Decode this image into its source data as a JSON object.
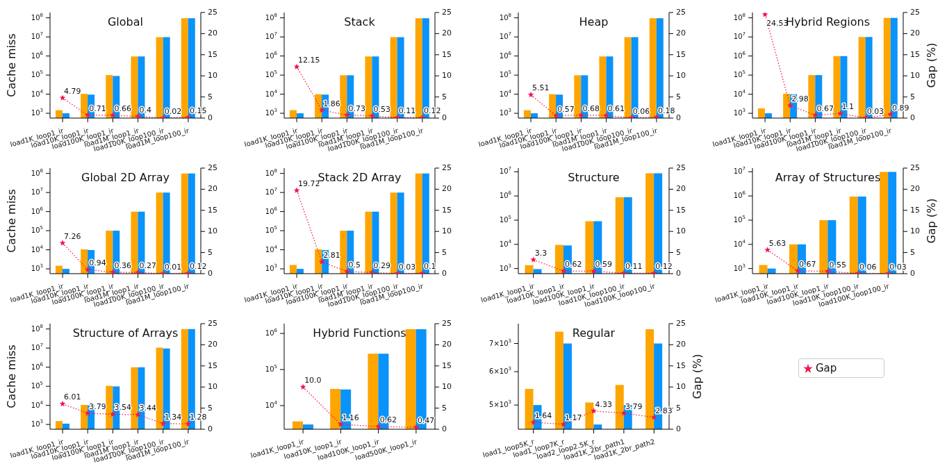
{
  "chart_data": [
    {
      "type": "bar",
      "title": "Global",
      "ylabel": "Cache miss",
      "log": true,
      "marker": "star",
      "line_style": "dotted",
      "categories": [
        "load1K_loop1_ir",
        "load10K_loop1_ir",
        "load100K_loop1_ir",
        "load1M_loop1_ir",
        "load100K_loop100_ir",
        "load1M_loop100_ir"
      ],
      "ylim": [
        560,
        190000000
      ],
      "yticks": [
        {
          "value": 1000,
          "label": "10$^{3}$"
        },
        {
          "value": 10000,
          "label": "10$^{4}$"
        },
        {
          "value": 100000,
          "label": "10$^{5}$"
        },
        {
          "value": 1000000,
          "label": "10$^{6}$"
        },
        {
          "value": 10000000,
          "label": "10$^{7}$"
        },
        {
          "value": 100000000,
          "label": "10$^{8}$"
        }
      ],
      "y2lim": [
        0,
        25
      ],
      "y2ticks": [
        0,
        5,
        10,
        15,
        20,
        25
      ],
      "series": [
        {
          "color": "#ffa500",
          "values": [
            1450,
            10400,
            100000,
            950000,
            9800000,
            95000000
          ]
        },
        {
          "color": "#0a93fa",
          "values": [
            1000,
            9500,
            90000,
            950000,
            9800000,
            95000000
          ]
        },
        {
          "type": "line",
          "axis": "y2",
          "color": "#f0184e",
          "values": [
            4.79,
            0.71,
            0.66,
            0.4,
            0.02,
            0.15
          ],
          "value_labels": [
            "4.79",
            "0.71",
            "0.66",
            "0.4",
            "0.02",
            "0.15"
          ]
        }
      ]
    },
    {
      "type": "bar",
      "title": "Stack",
      "log": true,
      "marker": "star",
      "line_style": "dotted",
      "categories": [
        "load1K_loop1_ir",
        "load10K_loop1_ir",
        "load100K_loop1_ir",
        "load1M_loop1_ir",
        "load100K_loop100_ir",
        "load1M_loop100_ir"
      ],
      "ylim": [
        560,
        190000000
      ],
      "yticks": [
        {
          "value": 1000,
          "label": "10$^{3}$"
        },
        {
          "value": 10000,
          "label": "10$^{4}$"
        },
        {
          "value": 100000,
          "label": "10$^{5}$"
        },
        {
          "value": 1000000,
          "label": "10$^{6}$"
        },
        {
          "value": 10000000,
          "label": "10$^{7}$"
        },
        {
          "value": 100000000,
          "label": "10$^{8}$"
        }
      ],
      "y2lim": [
        0,
        25
      ],
      "y2ticks": [
        0,
        5,
        10,
        15,
        20,
        25
      ],
      "series": [
        {
          "color": "#ffa500",
          "values": [
            1450,
            10000,
            98000,
            950000,
            9800000,
            95000000
          ]
        },
        {
          "color": "#0a93fa",
          "values": [
            1000,
            9500,
            98000,
            950000,
            9800000,
            95000000
          ]
        },
        {
          "type": "line",
          "axis": "y2",
          "color": "#f0184e",
          "values": [
            12.15,
            1.86,
            0.73,
            0.53,
            0.11,
            0.12
          ],
          "value_labels": [
            "12.15",
            "1.86",
            "0.73",
            "0.53",
            "0.11",
            "0.12"
          ]
        }
      ]
    },
    {
      "type": "bar",
      "title": "Heap",
      "log": true,
      "marker": "star",
      "line_style": "dotted",
      "categories": [
        "load1K_loop1_ir",
        "load10K_loop1_ir",
        "load100K_loop1_ir",
        "load1M_loop1_ir",
        "load100K_loop100_ir",
        "load1M_loop100_ir"
      ],
      "ylim": [
        560,
        190000000
      ],
      "yticks": [
        {
          "value": 1000,
          "label": "10$^{3}$"
        },
        {
          "value": 10000,
          "label": "10$^{4}$"
        },
        {
          "value": 100000,
          "label": "10$^{5}$"
        },
        {
          "value": 1000000,
          "label": "10$^{6}$"
        },
        {
          "value": 10000000,
          "label": "10$^{7}$"
        },
        {
          "value": 100000000,
          "label": "10$^{8}$"
        }
      ],
      "y2lim": [
        0,
        25
      ],
      "y2ticks": [
        0,
        5,
        10,
        15,
        20,
        25
      ],
      "series": [
        {
          "color": "#ffa500",
          "values": [
            1450,
            10000,
            98000,
            950000,
            9800000,
            95000000
          ]
        },
        {
          "color": "#0a93fa",
          "values": [
            1000,
            9500,
            98000,
            950000,
            9800000,
            95000000
          ]
        },
        {
          "type": "line",
          "axis": "y2",
          "color": "#f0184e",
          "values": [
            5.51,
            0.57,
            0.68,
            0.61,
            0.06,
            0.18
          ],
          "value_labels": [
            "5.51",
            "0.57",
            "0.68",
            "0.61",
            "0.06",
            "0.18"
          ]
        }
      ]
    },
    {
      "type": "bar",
      "title": "Hybrid Regions",
      "y2label": "Gap (%)",
      "log": true,
      "marker": "star",
      "line_style": "dotted",
      "categories": [
        "load1K_loop1_ir",
        "load10K_loop1_ir",
        "load100K_loop1_ir",
        "load1M_loop1_ir",
        "load100K_loop100_ir",
        "load1M_loop100_ir"
      ],
      "ylim": [
        560,
        190000000
      ],
      "yticks": [
        {
          "value": 1000,
          "label": "10$^{3}$"
        },
        {
          "value": 10000,
          "label": "10$^{4}$"
        },
        {
          "value": 100000,
          "label": "10$^{5}$"
        },
        {
          "value": 1000000,
          "label": "10$^{6}$"
        },
        {
          "value": 10000000,
          "label": "10$^{7}$"
        },
        {
          "value": 100000000,
          "label": "10$^{8}$"
        }
      ],
      "y2lim": [
        0,
        25
      ],
      "y2ticks": [
        0,
        5,
        10,
        15,
        20,
        25
      ],
      "series": [
        {
          "color": "#ffa500",
          "values": [
            1800,
            10500,
            100000,
            1000000,
            10000000,
            100000000
          ]
        },
        {
          "color": "#0a93fa",
          "values": [
            1000,
            9800,
            100000,
            1000000,
            10000000,
            100000000
          ]
        },
        {
          "type": "line",
          "axis": "y2",
          "color": "#f0184e",
          "values": [
            24.53,
            2.98,
            0.67,
            1.1,
            0.03,
            0.89
          ],
          "value_labels": [
            "24.53",
            "2.98",
            "0.67",
            "1.1",
            "0.03",
            "0.89"
          ]
        }
      ]
    },
    {
      "type": "bar",
      "title": "Global 2D Array",
      "ylabel": "Cache miss",
      "log": true,
      "marker": "star",
      "line_style": "dotted",
      "categories": [
        "load1K_loop1_ir",
        "load10K_loop1_ir",
        "load100K_loop1_ir",
        "load1M_loop1_ir",
        "load100K_loop100_ir",
        "load1M_loop100_ir"
      ],
      "ylim": [
        560,
        190000000
      ],
      "yticks": [
        {
          "value": 1000,
          "label": "10$^{3}$"
        },
        {
          "value": 10000,
          "label": "10$^{4}$"
        },
        {
          "value": 100000,
          "label": "10$^{5}$"
        },
        {
          "value": 1000000,
          "label": "10$^{6}$"
        },
        {
          "value": 10000000,
          "label": "10$^{7}$"
        },
        {
          "value": 100000000,
          "label": "10$^{8}$"
        }
      ],
      "y2lim": [
        0,
        25
      ],
      "y2ticks": [
        0,
        5,
        10,
        15,
        20,
        25
      ],
      "series": [
        {
          "color": "#ffa500",
          "values": [
            1450,
            10500,
            100000,
            1000000,
            10000000,
            100000000
          ]
        },
        {
          "color": "#0a93fa",
          "values": [
            1000,
            9600,
            100000,
            1000000,
            10000000,
            100000000
          ]
        },
        {
          "type": "line",
          "axis": "y2",
          "color": "#f0184e",
          "values": [
            7.26,
            0.94,
            0.36,
            0.27,
            0.01,
            0.12
          ],
          "value_labels": [
            "7.26",
            "0.94",
            "0.36",
            "0.27",
            "0.01",
            "0.12"
          ]
        }
      ]
    },
    {
      "type": "bar",
      "title": "Stack 2D Array",
      "log": true,
      "marker": "star",
      "line_style": "dotted",
      "categories": [
        "load1K_loop1_ir",
        "load10K_loop1_ir",
        "load100K_loop1_ir",
        "load1M_loop1_ir",
        "load100K_loop100_ir",
        "load1M_loop100_ir"
      ],
      "ylim": [
        560,
        190000000
      ],
      "yticks": [
        {
          "value": 1000,
          "label": "10$^{3}$"
        },
        {
          "value": 10000,
          "label": "10$^{4}$"
        },
        {
          "value": 100000,
          "label": "10$^{5}$"
        },
        {
          "value": 1000000,
          "label": "10$^{6}$"
        },
        {
          "value": 10000000,
          "label": "10$^{7}$"
        },
        {
          "value": 100000000,
          "label": "10$^{8}$"
        }
      ],
      "y2lim": [
        0,
        25
      ],
      "y2ticks": [
        0,
        5,
        10,
        15,
        20,
        25
      ],
      "series": [
        {
          "color": "#ffa500",
          "values": [
            1600,
            10500,
            100000,
            1000000,
            10000000,
            100000000
          ]
        },
        {
          "color": "#0a93fa",
          "values": [
            1000,
            9600,
            100000,
            1000000,
            10000000,
            100000000
          ]
        },
        {
          "type": "line",
          "axis": "y2",
          "color": "#f0184e",
          "values": [
            19.72,
            2.81,
            0.5,
            0.29,
            0.03,
            0.1
          ],
          "value_labels": [
            "19.72",
            "2.81",
            "0.5",
            "0.29",
            "0.03",
            "0.1"
          ]
        }
      ]
    },
    {
      "type": "bar",
      "title": "Structure",
      "log": true,
      "marker": "star",
      "line_style": "dotted",
      "categories": [
        "load1K_loop1_ir",
        "load10K_loop1_ir",
        "load100K_loop1_ir",
        "load10K_loop100_ir",
        "load100K_loop100_ir"
      ],
      "ylim": [
        615,
        14200000
      ],
      "yticks": [
        {
          "value": 1000,
          "label": "10$^{3}$"
        },
        {
          "value": 10000,
          "label": "10$^{4}$"
        },
        {
          "value": 100000,
          "label": "10$^{5}$"
        },
        {
          "value": 1000000,
          "label": "10$^{6}$"
        },
        {
          "value": 10000000,
          "label": "10$^{7}$"
        }
      ],
      "y2lim": [
        0,
        25
      ],
      "y2ticks": [
        0,
        5,
        10,
        15,
        20,
        25
      ],
      "series": [
        {
          "color": "#ffa500",
          "values": [
            1380,
            9500,
            90000,
            880000,
            8700000
          ]
        },
        {
          "color": "#0a93fa",
          "values": [
            950,
            9000,
            90000,
            880000,
            8700000
          ]
        },
        {
          "type": "line",
          "axis": "y2",
          "color": "#f0184e",
          "values": [
            3.3,
            0.62,
            0.59,
            0.11,
            0.12
          ],
          "value_labels": [
            "3.3",
            "0.62",
            "0.59",
            "0.11",
            "0.12"
          ]
        }
      ]
    },
    {
      "type": "bar",
      "title": "Array of Structures",
      "y2label": "Gap (%)",
      "log": true,
      "marker": "star",
      "line_style": "dotted",
      "categories": [
        "load1K_loop1_ir",
        "load10K_loop1_ir",
        "load100K_loop1_ir",
        "load10K_loop100_ir",
        "load100K_loop100_ir"
      ],
      "ylim": [
        615,
        14200000
      ],
      "yticks": [
        {
          "value": 1000,
          "label": "10$^{3}$"
        },
        {
          "value": 10000,
          "label": "10$^{4}$"
        },
        {
          "value": 100000,
          "label": "10$^{5}$"
        },
        {
          "value": 1000000,
          "label": "10$^{6}$"
        },
        {
          "value": 10000000,
          "label": "10$^{7}$"
        }
      ],
      "y2lim": [
        0,
        25
      ],
      "y2ticks": [
        0,
        5,
        10,
        15,
        20,
        25
      ],
      "series": [
        {
          "color": "#ffa500",
          "values": [
            1400,
            10000,
            100000,
            950000,
            9800000
          ]
        },
        {
          "color": "#0a93fa",
          "values": [
            1000,
            10000,
            100000,
            950000,
            9800000
          ]
        },
        {
          "type": "line",
          "axis": "y2",
          "color": "#f0184e",
          "values": [
            5.63,
            0.67,
            0.55,
            0.06,
            0.03
          ],
          "value_labels": [
            "5.63",
            "0.67",
            "0.55",
            "0.06",
            "0.03"
          ]
        }
      ]
    },
    {
      "type": "bar",
      "title": "Structure of Arrays",
      "ylabel": "Cache miss",
      "log": true,
      "marker": "star",
      "line_style": "dotted",
      "categories": [
        "load1K_loop1_ir",
        "load10K_loop1_ir",
        "load100K_loop1_ir",
        "load1M_loop1_ir",
        "load100K_loop100_ir",
        "load1M_loop100_ir"
      ],
      "ylim": [
        560,
        190000000
      ],
      "yticks": [
        {
          "value": 1000,
          "label": "10$^{3}$"
        },
        {
          "value": 10000,
          "label": "10$^{4}$"
        },
        {
          "value": 100000,
          "label": "10$^{5}$"
        },
        {
          "value": 1000000,
          "label": "10$^{6}$"
        },
        {
          "value": 10000000,
          "label": "10$^{7}$"
        },
        {
          "value": 100000000,
          "label": "10$^{8}$"
        }
      ],
      "y2lim": [
        0,
        25
      ],
      "y2ticks": [
        0,
        5,
        10,
        15,
        20,
        25
      ],
      "series": [
        {
          "color": "#ffa500",
          "values": [
            1500,
            10500,
            105000,
            1000000,
            10500000,
            100000000
          ]
        },
        {
          "color": "#0a93fa",
          "values": [
            1100,
            10000,
            98000,
            1000000,
            9500000,
            100000000
          ]
        },
        {
          "type": "line",
          "axis": "y2",
          "color": "#f0184e",
          "values": [
            6.01,
            3.79,
            3.54,
            3.44,
            1.34,
            1.28
          ],
          "value_labels": [
            "6.01",
            "3.79",
            "3.54",
            "3.44",
            "1.34",
            "1.28"
          ]
        }
      ]
    },
    {
      "type": "bar",
      "title": "Hybrid Functions",
      "log": true,
      "marker": "star",
      "line_style": "dotted",
      "categories": [
        "load1K_loop1_ir",
        "load10K_loop1_ir",
        "load100K_loop1_ir",
        "load500K_loop1_ir"
      ],
      "ylim": [
        2210,
        1870000
      ],
      "yticks": [
        {
          "value": 10000,
          "label": "10$^{4}$"
        },
        {
          "value": 100000,
          "label": "10$^{5}$"
        },
        {
          "value": 1000000,
          "label": "10$^{6}$"
        }
      ],
      "y2lim": [
        0,
        25
      ],
      "y2ticks": [
        0,
        5,
        10,
        15,
        20,
        25
      ],
      "series": [
        {
          "color": "#ffa500",
          "values": [
            3650,
            29000,
            274000,
            1310000
          ]
        },
        {
          "color": "#0a93fa",
          "values": [
            3000,
            28000,
            274000,
            1310000
          ]
        },
        {
          "type": "line",
          "axis": "y2",
          "color": "#f0184e",
          "values": [
            10.0,
            1.16,
            0.62,
            0.47
          ],
          "value_labels": [
            "10.0",
            "1.16",
            "0.62",
            "0.47"
          ]
        }
      ]
    },
    {
      "type": "bar",
      "title": "Regular",
      "y2label": "Gap (%)",
      "legend": "right",
      "log": true,
      "marker": "star",
      "line_style": "dotted",
      "categories": [
        "load1_loop5K_r",
        "load1_loop7K_r",
        "load2_loop2.5K_r",
        "load1K_2br_path1",
        "load1K_2br_path2"
      ],
      "ylim": [
        4380,
        7800
      ],
      "yticks": [
        {
          "value": 5000,
          "label": "5×10$^{3}$"
        },
        {
          "value": 6000,
          "label": "6×10$^{3}$"
        },
        {
          "value": 7000,
          "label": "7×10$^{3}$"
        }
      ],
      "y2lim": [
        0,
        25
      ],
      "y2ticks": [
        0,
        5,
        10,
        15,
        20,
        25
      ],
      "series": [
        {
          "color": "#ffa500",
          "values": [
            5460,
            7470,
            5070,
            5580,
            7570
          ]
        },
        {
          "color": "#0a93fa",
          "values": [
            5000,
            7000,
            4495,
            5000,
            7000
          ]
        },
        {
          "name": "Gap",
          "type": "line",
          "axis": "y2",
          "color": "#f0184e",
          "values": [
            1.64,
            1.17,
            4.33,
            3.79,
            2.83
          ],
          "value_labels": [
            "1.64",
            "1.17",
            "4.33",
            "3.79",
            "2.83"
          ]
        }
      ]
    }
  ]
}
